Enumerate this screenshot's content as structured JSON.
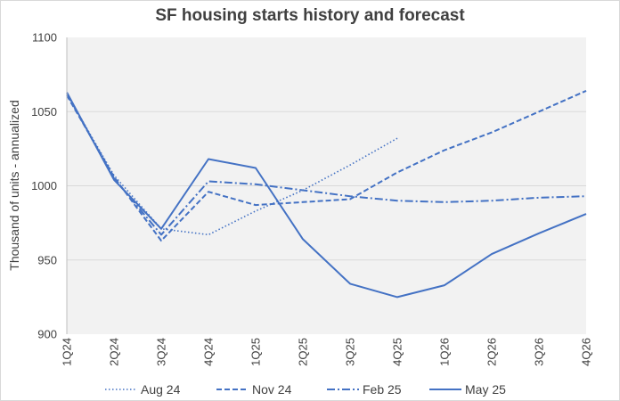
{
  "chart_data": {
    "type": "line",
    "title": "SF housing starts history and forecast",
    "xlabel": "",
    "ylabel": "Thousand  of units - annualized",
    "ylim": [
      900,
      1100
    ],
    "yticks": [
      900,
      950,
      1000,
      1050,
      1100
    ],
    "categories": [
      "1Q24",
      "2Q24",
      "3Q24",
      "4Q24",
      "1Q25",
      "2Q25",
      "3Q25",
      "4Q25",
      "1Q26",
      "2Q26",
      "3Q26",
      "4Q26"
    ],
    "grid": true,
    "legend_position": "bottom",
    "series": [
      {
        "name": "Aug 24",
        "dash": "dotted",
        "values": [
          1062,
          1007,
          971,
          967,
          983,
          997,
          1014,
          1032,
          null,
          null,
          null,
          null
        ]
      },
      {
        "name": "Nov 24",
        "dash": "dashed",
        "values": [
          1061,
          1006,
          963,
          996,
          987,
          989,
          991,
          1009,
          1024,
          1036,
          1050,
          1064
        ]
      },
      {
        "name": "Feb 25",
        "dash": "dashdot",
        "values": [
          1062,
          1005,
          967,
          1003,
          1001,
          997,
          993,
          990,
          989,
          990,
          992,
          993
        ]
      },
      {
        "name": "May 25",
        "dash": "solid",
        "values": [
          1063,
          1004,
          971,
          1018,
          1012,
          964,
          934,
          925,
          933,
          954,
          968,
          981
        ]
      }
    ],
    "color": "#4472c4"
  }
}
